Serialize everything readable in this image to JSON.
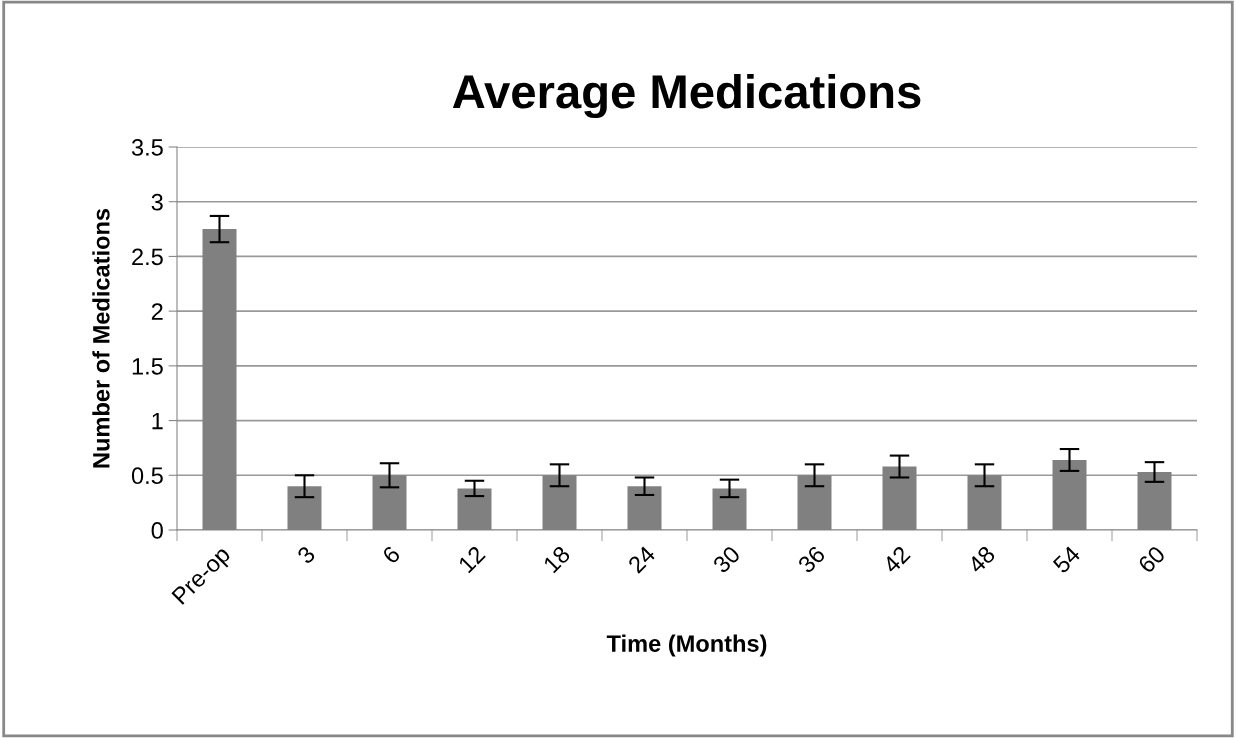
{
  "chart_data": {
    "type": "bar",
    "title": "Average Medications",
    "xlabel": "Time (Months)",
    "ylabel": "Number of Medications",
    "categories": [
      "Pre-op",
      "3",
      "6",
      "12",
      "18",
      "24",
      "30",
      "36",
      "42",
      "48",
      "54",
      "60"
    ],
    "values": [
      2.75,
      0.4,
      0.5,
      0.38,
      0.5,
      0.4,
      0.38,
      0.5,
      0.58,
      0.5,
      0.64,
      0.53
    ],
    "errors": [
      0.12,
      0.1,
      0.11,
      0.07,
      0.1,
      0.08,
      0.08,
      0.1,
      0.1,
      0.1,
      0.1,
      0.09
    ],
    "color": "#808080",
    "ylim": [
      0,
      3.5
    ],
    "yticks": [
      0,
      0.5,
      1,
      1.5,
      2,
      2.5,
      3,
      3.5
    ],
    "grid": "y"
  }
}
